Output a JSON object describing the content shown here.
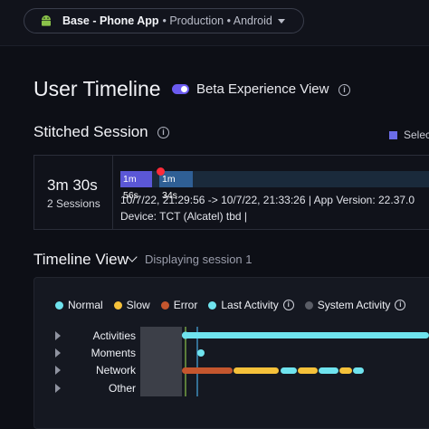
{
  "topbar": {
    "app_name": "Base - Phone App",
    "app_sub": "• Production • Android",
    "android_icon": "android-icon"
  },
  "page": {
    "title": "User Timeline",
    "beta_label": "Beta Experience View"
  },
  "stitched": {
    "title": "Stitched Session",
    "select_label": "Selec"
  },
  "session": {
    "duration": "3m 30s",
    "count": "2 Sessions",
    "chip1": "1m 56s",
    "chip2": "1m 34s",
    "meta": "10/7/22, 21:29:56 -> 10/7/22, 21:33:26     |     App Version: 22.37.0",
    "device": "Device: TCT (Alcatel) tbd     |"
  },
  "timeline_view": {
    "title": "Timeline View",
    "display": "Displaying session 1"
  },
  "legend": [
    {
      "label": "Normal",
      "color": "#6fe3ee"
    },
    {
      "label": "Slow",
      "color": "#f5c13a"
    },
    {
      "label": "Error",
      "color": "#c4562e"
    },
    {
      "label": "Last Activity",
      "color": "#6fe3ee"
    },
    {
      "label": "System Activity",
      "color": "#5a5d66"
    }
  ],
  "rows": [
    "Activities",
    "Moments",
    "Network",
    "Other"
  ],
  "colors": {
    "normal": "#6fe3ee",
    "slow": "#f5c13a",
    "error": "#c4562e",
    "system": "#5a5d66",
    "accent": "#6b5bf0"
  }
}
